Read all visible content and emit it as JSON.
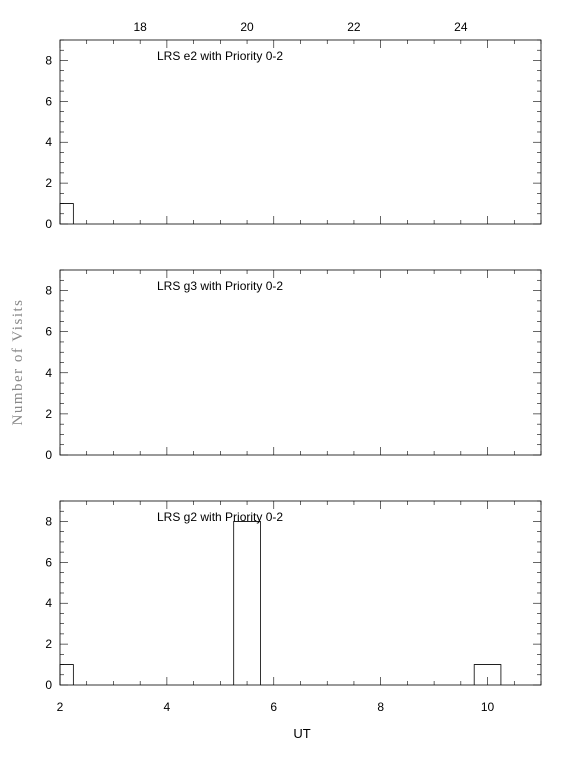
{
  "chart_data": {
    "type": "bar",
    "ylabel": "Number of Visits",
    "xlabel": "UT",
    "x_bottom": {
      "range": [
        2,
        11
      ],
      "ticks": [
        "2",
        "4",
        "6",
        "8",
        "10"
      ]
    },
    "x_top": {
      "range": [
        16.5,
        25.5
      ],
      "ticks": [
        "18",
        "20",
        "22",
        "24"
      ]
    },
    "ylim": [
      0,
      9
    ],
    "y_ticks": [
      "0",
      "2",
      "4",
      "6",
      "8"
    ],
    "panels": [
      {
        "label": "LRS e2 with Priority 0-2",
        "bins": [
          {
            "x0": 2.0,
            "x1": 2.25,
            "count": 1
          }
        ]
      },
      {
        "label": "LRS g3 with Priority 0-2",
        "bins": []
      },
      {
        "label": "LRS g2 with Priority 0-2",
        "bins": [
          {
            "x0": 2.0,
            "x1": 2.25,
            "count": 1
          },
          {
            "x0": 5.25,
            "x1": 5.75,
            "count": 8
          },
          {
            "x0": 9.75,
            "x1": 10.25,
            "count": 1
          }
        ]
      }
    ]
  }
}
